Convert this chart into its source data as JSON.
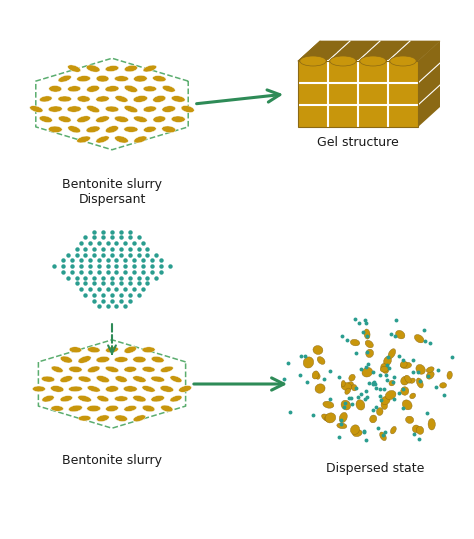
{
  "bg_color": "#ffffff",
  "gold_color": "#C8960C",
  "gold_dark": "#8B6914",
  "gold_light": "#D4A017",
  "teal_color": "#2A9D8F",
  "green_arrow": "#2E8B57",
  "dashed_hex_color": "#5BAD6F",
  "text_color": "#1a1a1a",
  "label1_top": "Bentonite slurry\nDispersant",
  "label2_top": "Gel structure",
  "label1_bot": "Bentonite slurry",
  "label2_bot": "Dispersed state",
  "figw": 4.74,
  "figh": 5.39,
  "dpi": 100
}
